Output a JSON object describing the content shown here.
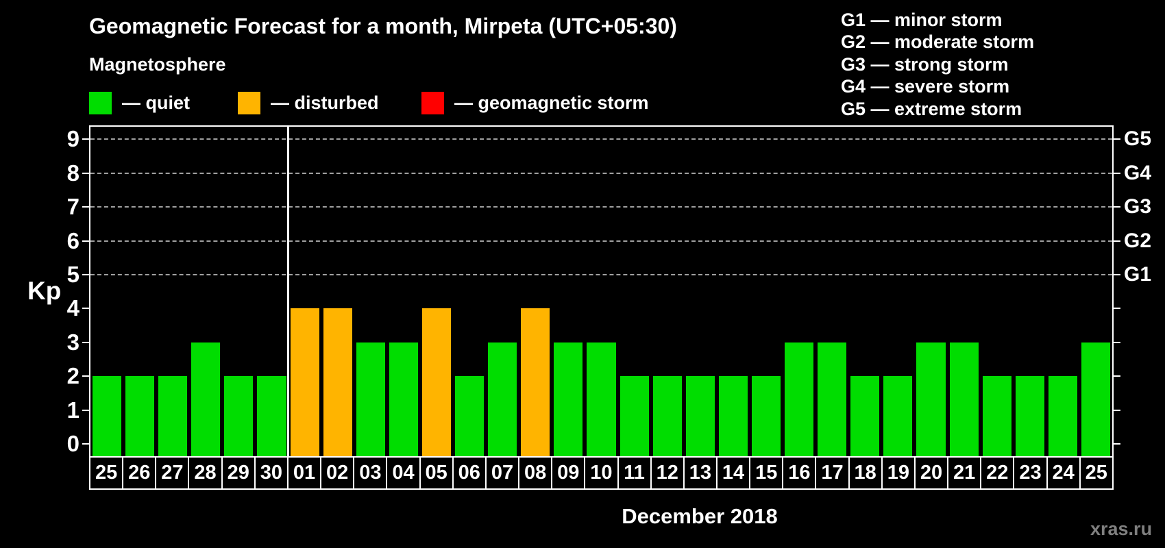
{
  "title": "Geomagnetic Forecast for a month, Mirpeta (UTC+05:30)",
  "subtitle": "Magnetosphere",
  "status_legend": [
    {
      "label": "— quiet",
      "status": "quiet"
    },
    {
      "label": "— disturbed",
      "status": "disturbed"
    },
    {
      "label": "— geomagnetic storm",
      "status": "storm"
    }
  ],
  "g_scale_legend": [
    "G1 — minor storm",
    "G2 — moderate storm",
    "G3 — strong storm",
    "G4 — severe storm",
    "G5 — extreme storm"
  ],
  "watermark": "xras.ru",
  "colors": {
    "quiet": "#00dd00",
    "disturbed": "#ffb400",
    "storm": "#ff0000",
    "background": "#000000",
    "text": "#ffffff",
    "gridline": "#a0a0a0",
    "watermark": "#808080"
  },
  "chart_data": {
    "type": "bar",
    "title": "Geomagnetic Forecast for a month, Mirpeta (UTC+05:30)",
    "ylabel": "Kp",
    "xlabel": "December 2018",
    "ylim": [
      0,
      9
    ],
    "y_ticks": [
      0,
      1,
      2,
      3,
      4,
      5,
      6,
      7,
      8,
      9
    ],
    "gridlines_at_kp": [
      5,
      6,
      7,
      8,
      9
    ],
    "grid": "dashed horizontal lines at Kp 5-9 only",
    "legend_position": "top-left",
    "right_axis_labels": [
      {
        "text": "G1",
        "kp": 5
      },
      {
        "text": "G2",
        "kp": 6
      },
      {
        "text": "G3",
        "kp": 7
      },
      {
        "text": "G4",
        "kp": 8
      },
      {
        "text": "G5",
        "kp": 9
      }
    ],
    "categories": [
      "25",
      "26",
      "27",
      "28",
      "29",
      "30",
      "01",
      "02",
      "03",
      "04",
      "05",
      "06",
      "07",
      "08",
      "09",
      "10",
      "11",
      "12",
      "13",
      "14",
      "15",
      "16",
      "17",
      "18",
      "19",
      "20",
      "21",
      "22",
      "23",
      "24",
      "25"
    ],
    "values": [
      2,
      2,
      2,
      3,
      2,
      2,
      4,
      4,
      3,
      3,
      4,
      2,
      3,
      4,
      3,
      3,
      2,
      2,
      2,
      2,
      2,
      3,
      3,
      2,
      2,
      3,
      3,
      2,
      2,
      2,
      3
    ],
    "statuses": [
      "quiet",
      "quiet",
      "quiet",
      "quiet",
      "quiet",
      "quiet",
      "disturbed",
      "disturbed",
      "quiet",
      "quiet",
      "disturbed",
      "quiet",
      "quiet",
      "disturbed",
      "quiet",
      "quiet",
      "quiet",
      "quiet",
      "quiet",
      "quiet",
      "quiet",
      "quiet",
      "quiet",
      "quiet",
      "quiet",
      "quiet",
      "quiet",
      "quiet",
      "quiet",
      "quiet",
      "quiet"
    ],
    "month_boundary_after_index": 5
  }
}
